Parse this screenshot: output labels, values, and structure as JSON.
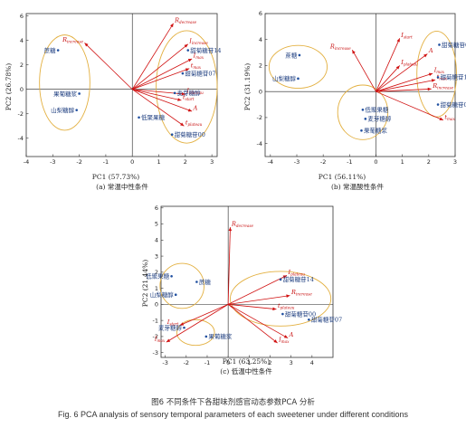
{
  "figure": {
    "caption_cn": "图6 不同条件下各甜味剂感官动态参数PCA 分析",
    "caption_en": "Fig. 6 PCA analysis of sensory temporal parameters of each sweetener under different conditions"
  },
  "colors": {
    "vector": "#d01010",
    "point": "#1f4fa0",
    "ellipse": "#e3b040"
  },
  "chart_data": [
    {
      "type": "scatter",
      "subtitle": "(a) 常温中性条件",
      "xlabel": "PC1 (57.73%)",
      "ylabel": "PC2 (26.78%)",
      "xlim": [
        -4,
        3.2
      ],
      "ylim": [
        -5.5,
        6.2
      ],
      "xticks": [
        -4,
        -3,
        -2,
        -1,
        0,
        1,
        2,
        3
      ],
      "yticks": [
        -4,
        -2,
        0,
        2,
        4,
        6
      ],
      "grid": false,
      "loadings": [
        {
          "name": "R",
          "sub": "increase",
          "x": -1.8,
          "y": 3.8
        },
        {
          "name": "R",
          "sub": "decrease",
          "x": 1.55,
          "y": 5.4
        },
        {
          "name": "I",
          "sub": "increase",
          "x": 2.1,
          "y": 3.7
        },
        {
          "name": "I",
          "sub": "max",
          "x": 2.25,
          "y": 2.5
        },
        {
          "name": "t",
          "sub": "max",
          "x": 2.15,
          "y": 1.7
        },
        {
          "name": "I",
          "sub": "plateau",
          "x": 2.0,
          "y": -0.4
        },
        {
          "name": "t",
          "sub": "start",
          "x": 1.85,
          "y": -0.9
        },
        {
          "name": "A",
          "sub": "",
          "x": 2.25,
          "y": -1.8
        },
        {
          "name": "t",
          "sub": "plateau",
          "x": 1.95,
          "y": -3.0
        }
      ],
      "scores": [
        {
          "name": "蔗糖",
          "x": -2.8,
          "y": 3.2
        },
        {
          "name": "果葡糖浆",
          "x": -2.0,
          "y": -0.35
        },
        {
          "name": "山梨糖醇",
          "x": -2.1,
          "y": -1.7
        },
        {
          "name": "甜菊糖苷14",
          "x": 2.1,
          "y": 3.2
        },
        {
          "name": "甜菊糖苷07",
          "x": 1.9,
          "y": 1.3
        },
        {
          "name": "麦芽糖醇",
          "x": 1.6,
          "y": -0.3
        },
        {
          "name": "低聚果糖",
          "x": 0.25,
          "y": -2.3
        },
        {
          "name": "甜菊糖苷00",
          "x": 1.5,
          "y": -3.7
        }
      ]
    },
    {
      "type": "scatter",
      "subtitle": "(b) 常温酸性条件",
      "xlabel": "PC1 (56.11%)",
      "ylabel": "PC2 (31.19%)",
      "xlim": [
        -4.2,
        3.0
      ],
      "ylim": [
        -5.0,
        6.0
      ],
      "xticks": [
        -4,
        -3,
        -2,
        -1,
        0,
        1,
        2,
        3
      ],
      "yticks": [
        -4,
        -2,
        0,
        2,
        4,
        6
      ],
      "grid": false,
      "loadings": [
        {
          "name": "I",
          "sub": "start",
          "x": 0.9,
          "y": 4.1
        },
        {
          "name": "R",
          "sub": "increase",
          "x": -0.9,
          "y": 3.2
        },
        {
          "name": "I",
          "sub": "plateau",
          "x": 0.9,
          "y": 2.0
        },
        {
          "name": "A",
          "sub": "",
          "x": 1.95,
          "y": 2.9
        },
        {
          "name": "I",
          "sub": "max",
          "x": 2.15,
          "y": 1.4
        },
        {
          "name": "t",
          "sub": "max",
          "x": 2.25,
          "y": 0.9
        },
        {
          "name": "R",
          "sub": "increase",
          "x": 2.1,
          "y": 0.2
        },
        {
          "name": "t",
          "sub": "max",
          "x": 2.55,
          "y": -2.2
        }
      ],
      "scores": [
        {
          "name": "蔗糖",
          "x": -2.9,
          "y": 2.8
        },
        {
          "name": "山梨糖醇",
          "x": -2.95,
          "y": 1.0
        },
        {
          "name": "甜菊糖苷07",
          "x": 2.4,
          "y": 3.6
        },
        {
          "name": "甜菊糖苷14",
          "x": 2.35,
          "y": 1.1
        },
        {
          "name": "甜菊糖苷00",
          "x": 2.35,
          "y": -1.0
        },
        {
          "name": "低聚果糖",
          "x": -0.5,
          "y": -1.4
        },
        {
          "name": "麦芽糖醇",
          "x": -0.4,
          "y": -2.1
        },
        {
          "name": "果葡糖浆",
          "x": -0.55,
          "y": -3.0
        }
      ]
    },
    {
      "type": "scatter",
      "subtitle": "(c) 低温中性条件",
      "xlabel": "PC1 (63.25%)",
      "ylabel": "PC2 (21.44%)",
      "xlim": [
        -3.2,
        5.0
      ],
      "ylim": [
        -3.3,
        6.1
      ],
      "xticks": [
        -3,
        -2,
        -1,
        0,
        1,
        2,
        3,
        4
      ],
      "yticks": [
        -3,
        -2,
        -1,
        0,
        1,
        2,
        3,
        4,
        5,
        6
      ],
      "grid": false,
      "loadings": [
        {
          "name": "R",
          "sub": "decrease",
          "x": 0.1,
          "y": 4.8
        },
        {
          "name": "I",
          "sub": "plateau",
          "x": 2.8,
          "y": 1.8
        },
        {
          "name": "R",
          "sub": "increase",
          "x": 2.95,
          "y": 0.55
        },
        {
          "name": "t",
          "sub": "plateau",
          "x": 2.3,
          "y": -0.3
        },
        {
          "name": "A",
          "sub": "",
          "x": 2.85,
          "y": -2.1
        },
        {
          "name": "I",
          "sub": "max",
          "x": 2.35,
          "y": -2.4
        },
        {
          "name": "I",
          "sub": "max",
          "x": -2.95,
          "y": -2.35
        },
        {
          "name": "I",
          "sub": "start",
          "x": -2.3,
          "y": -1.3
        }
      ],
      "scores": [
        {
          "name": "低聚果糖",
          "x": -2.7,
          "y": 1.75
        },
        {
          "name": "山梨糖醇",
          "x": -2.5,
          "y": 0.6
        },
        {
          "name": "蔗糖",
          "x": -1.5,
          "y": 1.4
        },
        {
          "name": "甜菊糖苷14",
          "x": 2.5,
          "y": 1.55
        },
        {
          "name": "甜菊糖苷00",
          "x": 2.6,
          "y": -0.6
        },
        {
          "name": "甜菊糖苷07",
          "x": 3.85,
          "y": -0.95
        },
        {
          "name": "麦芽糖醇",
          "x": -2.1,
          "y": -1.45
        },
        {
          "name": "果葡糖浆",
          "x": -1.05,
          "y": -2.0
        }
      ]
    }
  ]
}
